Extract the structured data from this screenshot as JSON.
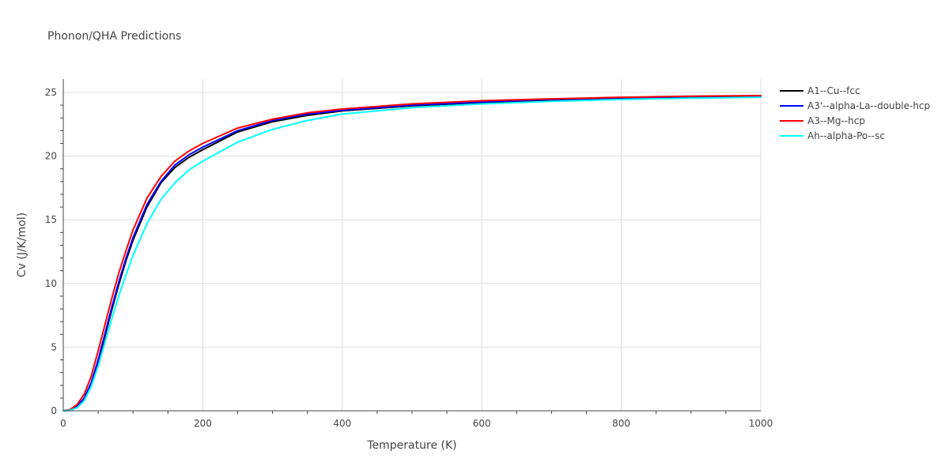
{
  "chart_data": {
    "type": "line",
    "title": "Phonon/QHA Predictions",
    "xlabel": "Temperature (K)",
    "ylabel": "Cv (J/K/mol)",
    "xlim": [
      0,
      1000
    ],
    "ylim": [
      0,
      26
    ],
    "xticks": [
      0,
      200,
      400,
      600,
      800,
      1000
    ],
    "yticks": [
      0,
      5,
      10,
      15,
      20,
      25
    ],
    "grid": true,
    "legend_position": "top-right outside",
    "x": [
      0,
      10,
      20,
      30,
      40,
      50,
      60,
      70,
      80,
      90,
      100,
      120,
      140,
      160,
      180,
      200,
      250,
      300,
      350,
      400,
      500,
      600,
      700,
      800,
      900,
      1000
    ],
    "series": [
      {
        "name": "A1--Cu--fcc",
        "color": "#000000",
        "values": [
          0,
          0.05,
          0.3,
          0.9,
          2.0,
          3.8,
          5.9,
          8.0,
          10.0,
          11.8,
          13.4,
          16.0,
          17.9,
          19.1,
          19.9,
          20.5,
          21.9,
          22.7,
          23.2,
          23.55,
          23.95,
          24.2,
          24.4,
          24.55,
          24.65,
          24.7
        ]
      },
      {
        "name": "A3'--alpha-La--double-hcp",
        "color": "#0000ff",
        "values": [
          0,
          0.06,
          0.35,
          1.0,
          2.2,
          4.0,
          6.1,
          8.2,
          10.2,
          12.0,
          13.6,
          16.2,
          18.0,
          19.3,
          20.1,
          20.7,
          22.0,
          22.8,
          23.3,
          23.6,
          24.0,
          24.25,
          24.45,
          24.58,
          24.67,
          24.72
        ]
      },
      {
        "name": "A3--Mg--hcp",
        "color": "#ff0000",
        "values": [
          0,
          0.1,
          0.5,
          1.3,
          2.7,
          4.7,
          6.8,
          8.9,
          10.9,
          12.6,
          14.2,
          16.7,
          18.4,
          19.6,
          20.4,
          21.0,
          22.2,
          22.9,
          23.4,
          23.7,
          24.1,
          24.35,
          24.5,
          24.62,
          24.7,
          24.75
        ]
      },
      {
        "name": "Ah--alpha-Po--sc",
        "color": "#00ffff",
        "values": [
          0,
          0.04,
          0.25,
          0.8,
          1.9,
          3.5,
          5.4,
          7.3,
          9.1,
          10.7,
          12.2,
          14.7,
          16.6,
          17.9,
          18.9,
          19.6,
          21.1,
          22.1,
          22.8,
          23.3,
          23.8,
          24.1,
          24.3,
          24.45,
          24.55,
          24.62
        ]
      }
    ]
  }
}
